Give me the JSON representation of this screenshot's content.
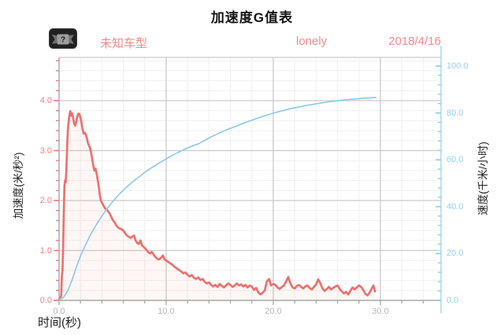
{
  "title": "加速度G值表",
  "header": {
    "badge_icon": "unknown-license-plate",
    "badge_glyph": "?",
    "vehicle_model": "未知车型",
    "username": "lonely",
    "date": "2018/4/16",
    "accent_color": "#f28a8c"
  },
  "chart_data": {
    "type": "line",
    "title": "加速度G值表",
    "grid": {
      "major_color": "#cacaca",
      "minor_color": "#f0f0f0",
      "show_minor": true
    },
    "x_axis": {
      "label": "时间(秒)",
      "range": [
        0,
        35.7
      ],
      "major_ticks": [
        0,
        10,
        20,
        30
      ],
      "tick_labels": [
        "0.0",
        "10.0",
        "20.0",
        "30.0"
      ],
      "minor_step": 2,
      "minor_max": 34,
      "color": "#a8a8a8",
      "label_color": "#b5b5b5"
    },
    "y_left": {
      "label": "加速度(米/秒²)",
      "range": [
        0,
        4.87
      ],
      "major_ticks": [
        0,
        1,
        2,
        3,
        4
      ],
      "tick_labels": [
        "0.0",
        "1.0",
        "2.0",
        "3.0",
        "4.0"
      ],
      "minor_step": 0.2,
      "minor_max": 4.8,
      "axis_color": "#ababab",
      "tick_color": "#e8807e",
      "label_color": "#ea8281"
    },
    "y_right": {
      "label": "速度(千米/小时)",
      "range": [
        0,
        103.7
      ],
      "major_ticks": [
        0,
        20,
        40,
        60,
        80,
        100
      ],
      "tick_labels": [
        "0.0",
        "20.0",
        "40.0",
        "60.0",
        "80.0",
        "100.0"
      ],
      "minor_step": 4,
      "minor_max": 100,
      "axis_color": "#a9d9ef",
      "tick_color": "#8fcdeb",
      "label_color": "#8fd2ee"
    },
    "series": [
      {
        "name": "acceleration",
        "axis": "left",
        "color": "#ec716e",
        "width": 2.7,
        "fill": "#ec716e",
        "fill_opacity": 0.06,
        "points": [
          [
            0,
            0.02
          ],
          [
            0.12,
            0.05
          ],
          [
            0.2,
            0.1
          ],
          [
            0.26,
            0.5
          ],
          [
            0.32,
            0.6
          ],
          [
            0.38,
            1.05
          ],
          [
            0.44,
            1.75
          ],
          [
            0.5,
            2.28
          ],
          [
            0.56,
            2.4
          ],
          [
            0.62,
            2.37
          ],
          [
            0.68,
            2.6
          ],
          [
            0.75,
            3.05
          ],
          [
            0.82,
            3.4
          ],
          [
            0.9,
            3.6
          ],
          [
            0.98,
            3.72
          ],
          [
            1.05,
            3.79
          ],
          [
            1.12,
            3.7
          ],
          [
            1.2,
            3.75
          ],
          [
            1.3,
            3.68
          ],
          [
            1.4,
            3.55
          ],
          [
            1.5,
            3.5
          ],
          [
            1.6,
            3.58
          ],
          [
            1.7,
            3.68
          ],
          [
            1.8,
            3.74
          ],
          [
            1.9,
            3.73
          ],
          [
            2.0,
            3.66
          ],
          [
            2.1,
            3.55
          ],
          [
            2.2,
            3.42
          ],
          [
            2.3,
            3.34
          ],
          [
            2.4,
            3.36
          ],
          [
            2.5,
            3.32
          ],
          [
            2.6,
            3.25
          ],
          [
            2.7,
            3.15
          ],
          [
            2.8,
            3.1
          ],
          [
            2.9,
            3.05
          ],
          [
            3.0,
            2.95
          ],
          [
            3.1,
            2.82
          ],
          [
            3.2,
            2.7
          ],
          [
            3.3,
            2.6
          ],
          [
            3.4,
            2.64
          ],
          [
            3.5,
            2.55
          ],
          [
            3.6,
            2.42
          ],
          [
            3.7,
            2.3
          ],
          [
            3.8,
            2.12
          ],
          [
            3.9,
            2.0
          ],
          [
            4.0,
            1.96
          ],
          [
            4.15,
            1.9
          ],
          [
            4.3,
            1.84
          ],
          [
            4.45,
            1.82
          ],
          [
            4.6,
            1.78
          ],
          [
            4.75,
            1.73
          ],
          [
            4.9,
            1.66
          ],
          [
            5.05,
            1.6
          ],
          [
            5.2,
            1.56
          ],
          [
            5.35,
            1.5
          ],
          [
            5.5,
            1.46
          ],
          [
            5.65,
            1.44
          ],
          [
            5.8,
            1.43
          ],
          [
            5.95,
            1.41
          ],
          [
            6.1,
            1.37
          ],
          [
            6.25,
            1.32
          ],
          [
            6.4,
            1.29
          ],
          [
            6.55,
            1.27
          ],
          [
            6.7,
            1.25
          ],
          [
            6.85,
            1.28
          ],
          [
            7.0,
            1.3
          ],
          [
            7.15,
            1.2
          ],
          [
            7.3,
            1.15
          ],
          [
            7.45,
            1.13
          ],
          [
            7.6,
            1.2
          ],
          [
            7.75,
            1.1
          ],
          [
            7.9,
            1.07
          ],
          [
            8.05,
            1.04
          ],
          [
            8.2,
            1.0
          ],
          [
            8.35,
            0.96
          ],
          [
            8.5,
            0.94
          ],
          [
            8.65,
            0.97
          ],
          [
            8.8,
            0.93
          ],
          [
            8.95,
            0.88
          ],
          [
            9.1,
            0.85
          ],
          [
            9.25,
            0.82
          ],
          [
            9.4,
            0.83
          ],
          [
            9.55,
            0.86
          ],
          [
            9.7,
            0.9
          ],
          [
            9.85,
            0.82
          ],
          [
            10.0,
            0.8
          ],
          [
            10.2,
            0.77
          ],
          [
            10.4,
            0.74
          ],
          [
            10.6,
            0.71
          ],
          [
            10.8,
            0.67
          ],
          [
            11.0,
            0.64
          ],
          [
            11.2,
            0.61
          ],
          [
            11.4,
            0.58
          ],
          [
            11.6,
            0.54
          ],
          [
            11.8,
            0.56
          ],
          [
            12.0,
            0.51
          ],
          [
            12.2,
            0.48
          ],
          [
            12.4,
            0.51
          ],
          [
            12.6,
            0.45
          ],
          [
            12.8,
            0.43
          ],
          [
            13.0,
            0.46
          ],
          [
            13.2,
            0.41
          ],
          [
            13.4,
            0.43
          ],
          [
            13.6,
            0.37
          ],
          [
            13.8,
            0.34
          ],
          [
            14.0,
            0.36
          ],
          [
            14.2,
            0.31
          ],
          [
            14.4,
            0.28
          ],
          [
            14.6,
            0.31
          ],
          [
            14.8,
            0.27
          ],
          [
            15.0,
            0.33
          ],
          [
            15.2,
            0.29
          ],
          [
            15.4,
            0.26
          ],
          [
            15.6,
            0.3
          ],
          [
            15.8,
            0.34
          ],
          [
            16.0,
            0.31
          ],
          [
            16.2,
            0.27
          ],
          [
            16.4,
            0.3
          ],
          [
            16.6,
            0.34
          ],
          [
            16.8,
            0.3
          ],
          [
            17.0,
            0.32
          ],
          [
            17.2,
            0.28
          ],
          [
            17.4,
            0.31
          ],
          [
            17.6,
            0.26
          ],
          [
            17.8,
            0.3
          ],
          [
            18.0,
            0.28
          ],
          [
            18.2,
            0.21
          ],
          [
            18.4,
            0.25
          ],
          [
            18.6,
            0.16
          ],
          [
            18.8,
            0.12
          ],
          [
            19.0,
            0.15
          ],
          [
            19.2,
            0.2
          ],
          [
            19.4,
            0.38
          ],
          [
            19.6,
            0.43
          ],
          [
            19.8,
            0.3
          ],
          [
            20.0,
            0.33
          ],
          [
            20.2,
            0.31
          ],
          [
            20.4,
            0.26
          ],
          [
            20.6,
            0.23
          ],
          [
            20.8,
            0.27
          ],
          [
            21.0,
            0.3
          ],
          [
            21.2,
            0.38
          ],
          [
            21.4,
            0.47
          ],
          [
            21.6,
            0.34
          ],
          [
            21.8,
            0.26
          ],
          [
            22.0,
            0.24
          ],
          [
            22.2,
            0.29
          ],
          [
            22.4,
            0.31
          ],
          [
            22.6,
            0.27
          ],
          [
            22.8,
            0.24
          ],
          [
            23.0,
            0.28
          ],
          [
            23.2,
            0.3
          ],
          [
            23.4,
            0.25
          ],
          [
            23.6,
            0.22
          ],
          [
            23.8,
            0.27
          ],
          [
            24.0,
            0.32
          ],
          [
            24.2,
            0.42
          ],
          [
            24.4,
            0.34
          ],
          [
            24.6,
            0.24
          ],
          [
            24.8,
            0.19
          ],
          [
            25.0,
            0.23
          ],
          [
            25.2,
            0.27
          ],
          [
            25.4,
            0.22
          ],
          [
            25.6,
            0.25
          ],
          [
            25.8,
            0.28
          ],
          [
            26.0,
            0.3
          ],
          [
            26.2,
            0.23
          ],
          [
            26.4,
            0.18
          ],
          [
            26.6,
            0.14
          ],
          [
            26.8,
            0.17
          ],
          [
            27.0,
            0.12
          ],
          [
            27.2,
            0.19
          ],
          [
            27.4,
            0.26
          ],
          [
            27.6,
            0.22
          ],
          [
            27.8,
            0.26
          ],
          [
            28.0,
            0.3
          ],
          [
            28.2,
            0.27
          ],
          [
            28.4,
            0.21
          ],
          [
            28.6,
            0.13
          ],
          [
            28.8,
            0.1
          ],
          [
            29.0,
            0.16
          ],
          [
            29.2,
            0.24
          ],
          [
            29.35,
            0.3
          ],
          [
            29.5,
            0.18
          ]
        ]
      },
      {
        "name": "speed",
        "axis": "right",
        "color": "#8bc9e7",
        "width": 1.6,
        "points": [
          [
            0,
            0.3
          ],
          [
            0.4,
            1.2
          ],
          [
            0.8,
            4.0
          ],
          [
            1.2,
            8.5
          ],
          [
            1.6,
            14.0
          ],
          [
            2.0,
            19.0
          ],
          [
            2.4,
            23.0
          ],
          [
            2.8,
            26.8
          ],
          [
            3.2,
            30.2
          ],
          [
            3.6,
            33.2
          ],
          [
            4.0,
            36.0
          ],
          [
            4.4,
            38.6
          ],
          [
            4.8,
            41.0
          ],
          [
            5.2,
            43.2
          ],
          [
            5.6,
            45.2
          ],
          [
            6.0,
            47.0
          ],
          [
            6.4,
            48.7
          ],
          [
            6.8,
            50.3
          ],
          [
            7.2,
            51.8
          ],
          [
            7.6,
            53.2
          ],
          [
            8.0,
            54.6
          ],
          [
            8.4,
            55.9
          ],
          [
            8.8,
            57.1
          ],
          [
            9.2,
            58.2
          ],
          [
            9.6,
            59.3
          ],
          [
            10.0,
            60.4
          ],
          [
            10.5,
            61.7
          ],
          [
            11.0,
            62.9
          ],
          [
            11.5,
            64.0
          ],
          [
            12.0,
            65.1
          ],
          [
            12.5,
            66.0
          ],
          [
            13.0,
            66.8
          ],
          [
            13.5,
            68.0
          ],
          [
            14.0,
            69.3
          ],
          [
            14.5,
            70.4
          ],
          [
            15.0,
            71.5
          ],
          [
            15.5,
            72.5
          ],
          [
            16.0,
            73.4
          ],
          [
            16.5,
            74.3
          ],
          [
            17.0,
            75.2
          ],
          [
            17.5,
            76.1
          ],
          [
            18.0,
            76.9
          ],
          [
            18.5,
            77.7
          ],
          [
            19.0,
            78.5
          ],
          [
            19.5,
            79.2
          ],
          [
            20.0,
            79.9
          ],
          [
            20.5,
            80.5
          ],
          [
            21.0,
            81.1
          ],
          [
            21.5,
            81.7
          ],
          [
            22.0,
            82.2
          ],
          [
            22.5,
            82.6
          ],
          [
            23.0,
            83.1
          ],
          [
            23.5,
            83.5
          ],
          [
            24.0,
            83.9
          ],
          [
            24.5,
            84.3
          ],
          [
            25.0,
            84.6
          ],
          [
            25.5,
            84.9
          ],
          [
            26.0,
            85.2
          ],
          [
            26.5,
            85.5
          ],
          [
            27.0,
            85.7
          ],
          [
            27.5,
            85.9
          ],
          [
            28.0,
            86.1
          ],
          [
            28.5,
            86.3
          ],
          [
            29.0,
            86.4
          ],
          [
            29.3,
            86.5
          ],
          [
            29.6,
            86.6
          ]
        ]
      }
    ]
  }
}
